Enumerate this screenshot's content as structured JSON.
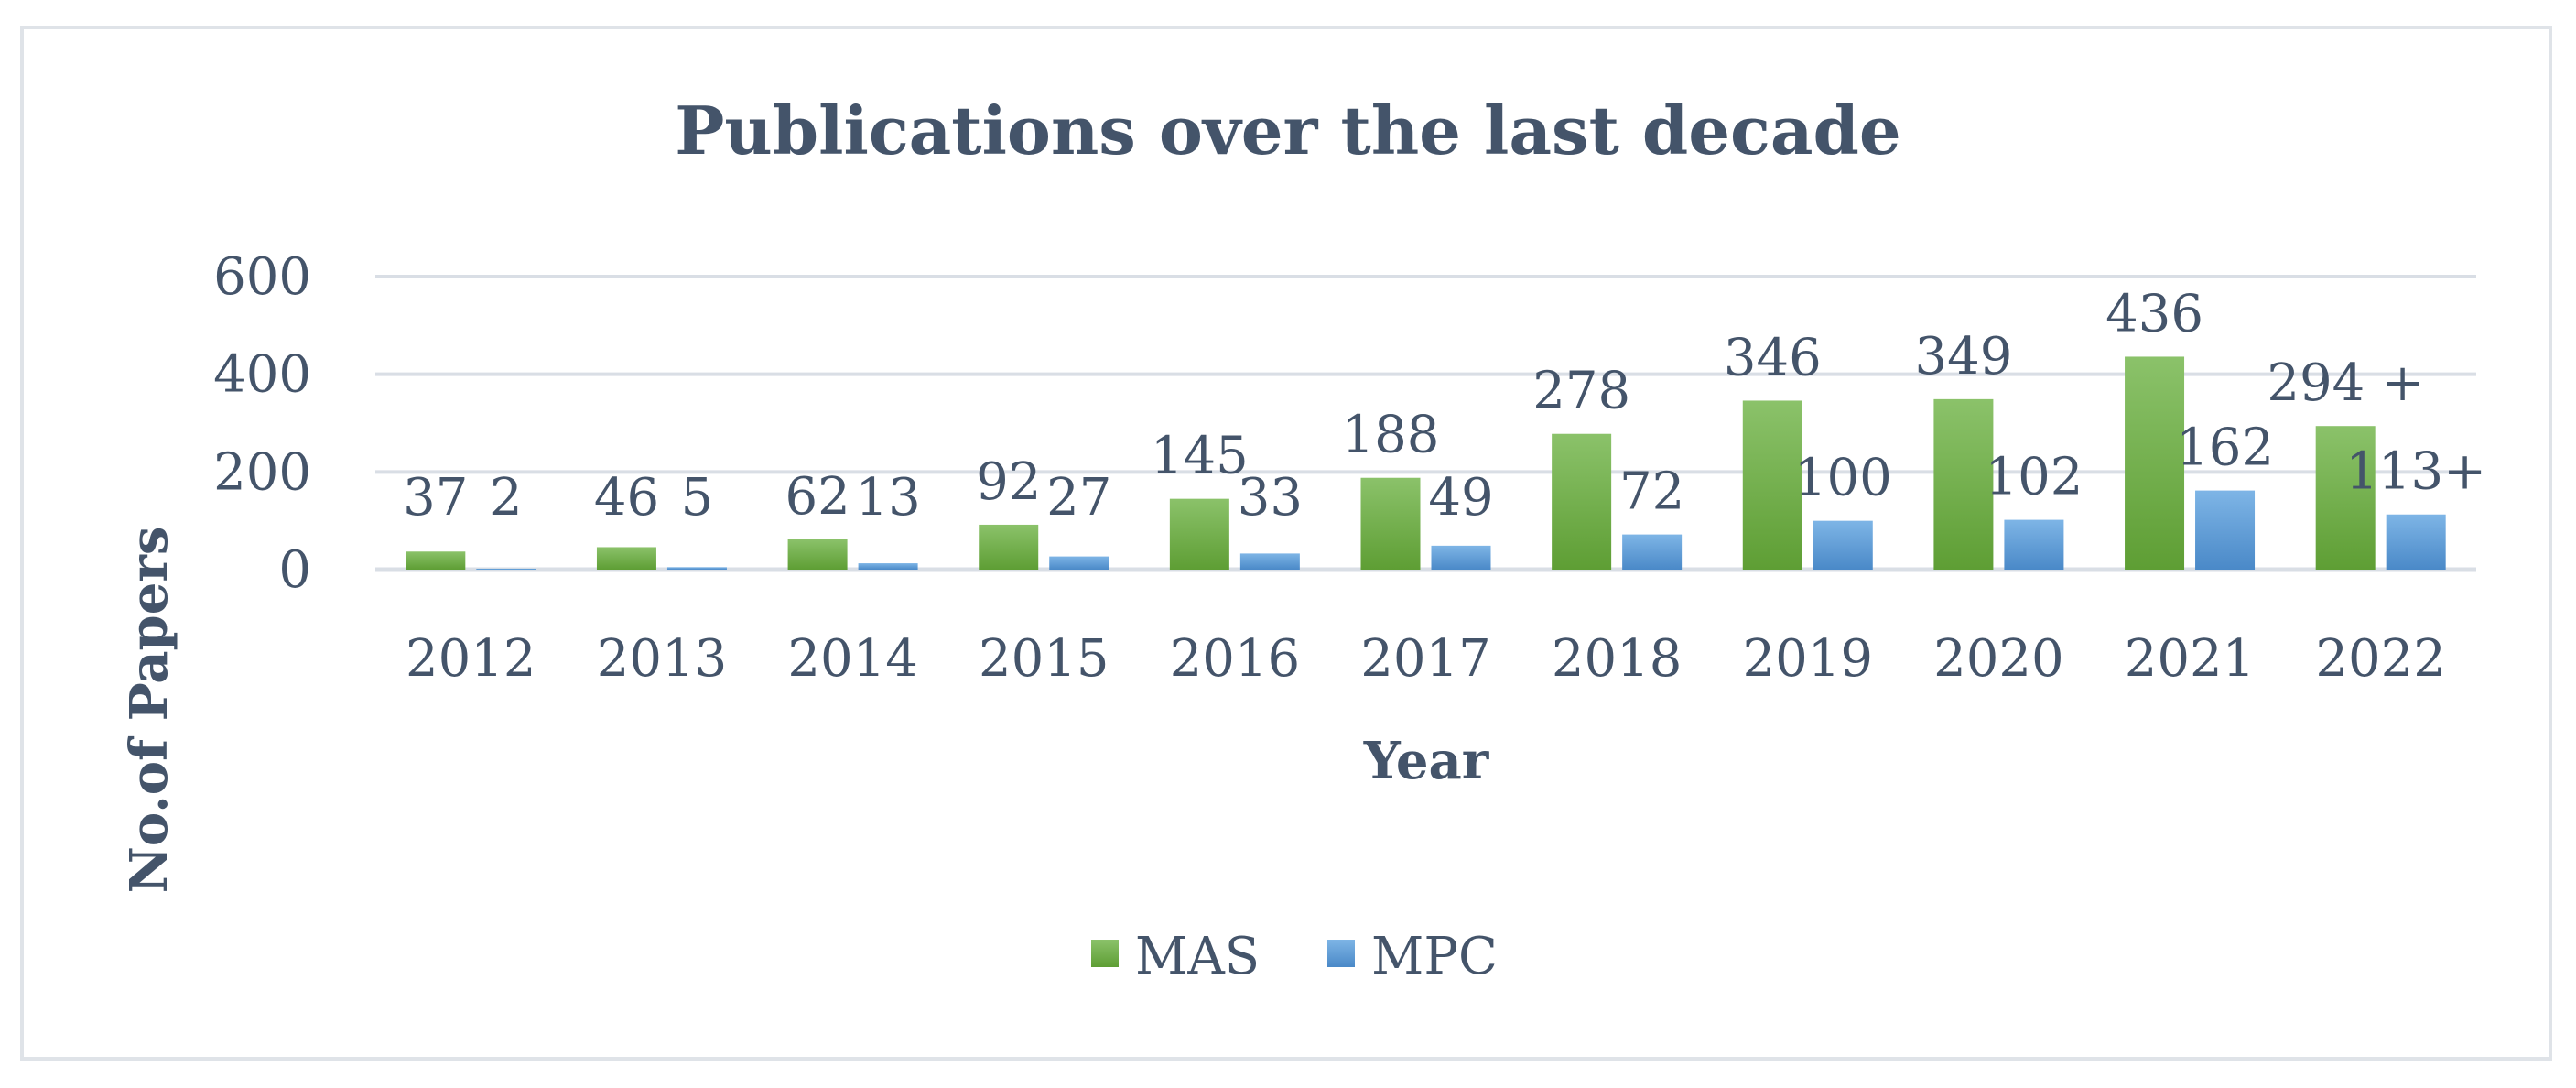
{
  "chart_data": {
    "type": "bar",
    "title": "Publications over the last decade",
    "xlabel": "Year",
    "ylabel": "No.of Papers",
    "ylim": [
      0,
      600
    ],
    "yticks": [
      "0",
      "200",
      "400",
      "600"
    ],
    "grid": true,
    "legend_position": "bottom",
    "categories": [
      "2012",
      "2013",
      "2014",
      "2015",
      "2016",
      "2017",
      "2018",
      "2019",
      "2020",
      "2021",
      "2022"
    ],
    "series": [
      {
        "name": "MAS",
        "color": "#70ad47",
        "values": [
          37,
          46,
          62,
          92,
          145,
          188,
          278,
          346,
          349,
          436,
          294
        ],
        "labels": [
          "37",
          "46",
          "62",
          "92",
          "145",
          "188",
          "278",
          "346",
          "349",
          "436",
          "294 +"
        ]
      },
      {
        "name": "MPC",
        "color": "#5b9bd5",
        "values": [
          2,
          5,
          13,
          27,
          33,
          49,
          72,
          100,
          102,
          162,
          113
        ],
        "labels": [
          "2",
          "5",
          "13",
          "27",
          "33",
          "49",
          "72",
          "100",
          "102",
          "162",
          "113+"
        ]
      }
    ]
  }
}
